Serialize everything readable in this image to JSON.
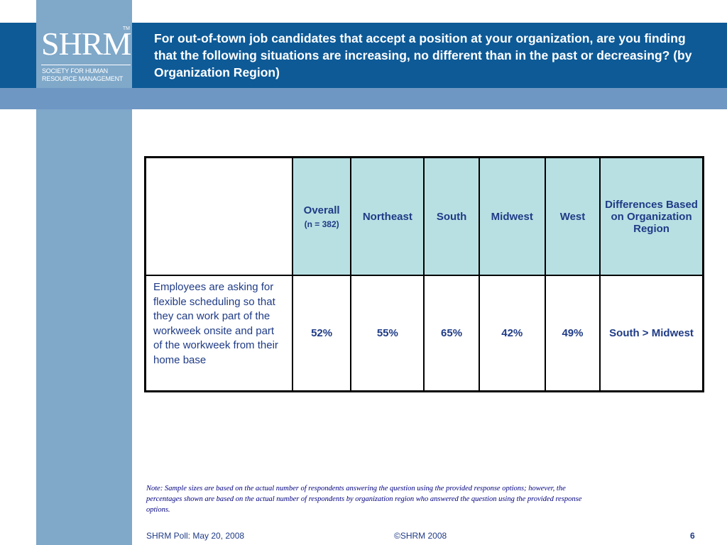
{
  "header": {
    "title": "For out-of-town job candidates that accept a position at your organization, are you finding that the following situations are increasing, no different than in the past or decreasing? (by Organization Region)"
  },
  "logo": {
    "wordmark": "SHRM",
    "trademark": "TM",
    "tagline": "Society for Human Resource Management"
  },
  "table": {
    "columns": [
      {
        "label": "Overall",
        "sub": "(n = 382)"
      },
      {
        "label": "Northeast"
      },
      {
        "label": "South"
      },
      {
        "label": "Midwest"
      },
      {
        "label": "West"
      },
      {
        "label": "Differences Based on Organization Region"
      }
    ],
    "rows": [
      {
        "label": "Employees are asking for flexible scheduling so that they can work part of the workweek onsite and part of the workweek from their home base",
        "values": [
          "52%",
          "55%",
          "65%",
          "42%",
          "49%",
          "South > Midwest"
        ]
      }
    ]
  },
  "note": "Note: Sample sizes are based on the actual number of respondents answering the question using the provided response options; however, the percentages shown are based on the actual number of respondents by organization region who answered the question using the provided response options.",
  "footer": {
    "left": "SHRM Poll: May 20, 2008",
    "center": "©SHRM 2008",
    "page": "6"
  },
  "colors": {
    "header_blue": "#0d5a97",
    "band_blue": "#7fa8c9",
    "sub_band_blue": "#6f97c4",
    "header_cell": "#b8e0e3",
    "text_navy": "#1f3b86"
  }
}
